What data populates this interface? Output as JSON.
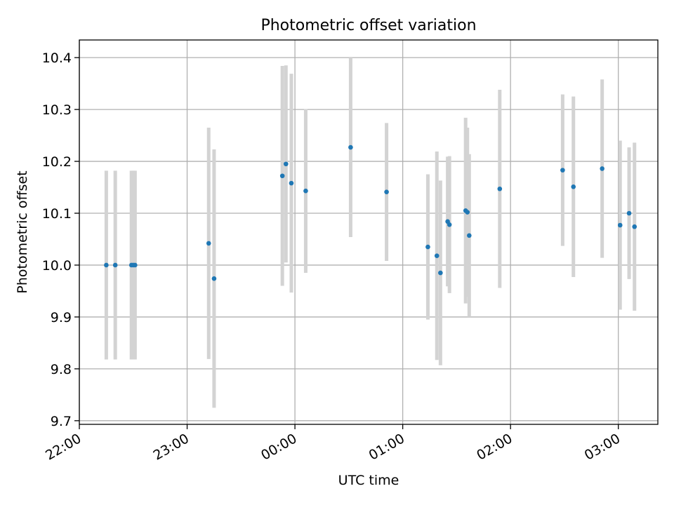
{
  "chart_data": {
    "type": "scatter",
    "title": "Photometric offset variation",
    "xlabel": "UTC time",
    "ylabel": "Photometric offset",
    "x_ticks": [
      "22:00",
      "23:00",
      "00:00",
      "01:00",
      "02:00",
      "03:00"
    ],
    "y_ticks": [
      "9.7",
      "9.8",
      "9.9",
      "10.0",
      "10.1",
      "10.2",
      "10.3",
      "10.4"
    ],
    "xlim": [
      "22:00",
      "03:22"
    ],
    "ylim": [
      9.693,
      10.434
    ],
    "grid": true,
    "colors": {
      "marker": "#1f77b4",
      "errorbar": "#d3d3d3",
      "grid": "#b0b0b0"
    },
    "points": [
      {
        "x": "22:15",
        "y": 10.0,
        "yerr": 0.182
      },
      {
        "x": "22:20",
        "y": 10.0,
        "yerr": 0.182
      },
      {
        "x": "22:29",
        "y": 10.0,
        "yerr": 0.182
      },
      {
        "x": "22:30",
        "y": 10.0,
        "yerr": 0.182
      },
      {
        "x": "22:31",
        "y": 10.0,
        "yerr": 0.182
      },
      {
        "x": "23:12",
        "y": 10.042,
        "yerr": 0.223
      },
      {
        "x": "23:15",
        "y": 9.974,
        "yerr": 0.249
      },
      {
        "x": "23:53",
        "y": 10.172,
        "yerr": 0.212
      },
      {
        "x": "23:55",
        "y": 10.195,
        "yerr": 0.19
      },
      {
        "x": "23:58",
        "y": 10.158,
        "yerr": 0.211
      },
      {
        "x": "00:06",
        "y": 10.143,
        "yerr": 0.158
      },
      {
        "x": "00:31",
        "y": 10.227,
        "yerr": 0.173
      },
      {
        "x": "00:51",
        "y": 10.141,
        "yerr": 0.133
      },
      {
        "x": "01:14",
        "y": 10.035,
        "yerr": 0.14
      },
      {
        "x": "01:19",
        "y": 10.018,
        "yerr": 0.201
      },
      {
        "x": "01:21",
        "y": 9.985,
        "yerr": 0.178
      },
      {
        "x": "01:25",
        "y": 10.084,
        "yerr": 0.125
      },
      {
        "x": "01:26",
        "y": 10.078,
        "yerr": 0.132
      },
      {
        "x": "01:35",
        "y": 10.105,
        "yerr": 0.179
      },
      {
        "x": "01:36",
        "y": 10.102,
        "yerr": 0.163
      },
      {
        "x": "01:37",
        "y": 10.057,
        "yerr": 0.157
      },
      {
        "x": "01:54",
        "y": 10.147,
        "yerr": 0.191
      },
      {
        "x": "02:29",
        "y": 10.183,
        "yerr": 0.146
      },
      {
        "x": "02:35",
        "y": 10.151,
        "yerr": 0.174
      },
      {
        "x": "02:51",
        "y": 10.186,
        "yerr": 0.172
      },
      {
        "x": "03:01",
        "y": 10.077,
        "yerr": 0.163
      },
      {
        "x": "03:06",
        "y": 10.1,
        "yerr": 0.127
      },
      {
        "x": "03:09",
        "y": 10.074,
        "yerr": 0.162
      }
    ]
  }
}
